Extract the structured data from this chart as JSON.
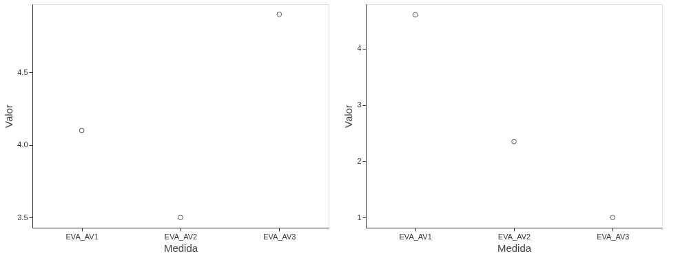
{
  "chart_data": [
    {
      "type": "scatter",
      "categories": [
        "EVA_AV1",
        "EVA_AV2",
        "EVA_AV3"
      ],
      "values": [
        4.1,
        3.5,
        4.9
      ],
      "color": "#555555",
      "marker": "circle",
      "grid": false,
      "xlabel": "Medida",
      "ylabel": "Valor",
      "ylim": [
        3.43,
        4.97
      ],
      "yticks": [
        3.5,
        {
          "value": 4,
          "label": "4.0"
        },
        4.5
      ]
    },
    {
      "type": "scatter",
      "categories": [
        "EVA_AV1",
        "EVA_AV2",
        "EVA_AV3"
      ],
      "values": [
        4.6,
        2.35,
        1.0
      ],
      "color": "#555555",
      "marker": "circle",
      "grid": false,
      "xlabel": "Medida",
      "ylabel": "Valor",
      "ylim": [
        0.82,
        4.79
      ],
      "yticks": [
        1,
        2,
        3,
        4
      ]
    }
  ]
}
